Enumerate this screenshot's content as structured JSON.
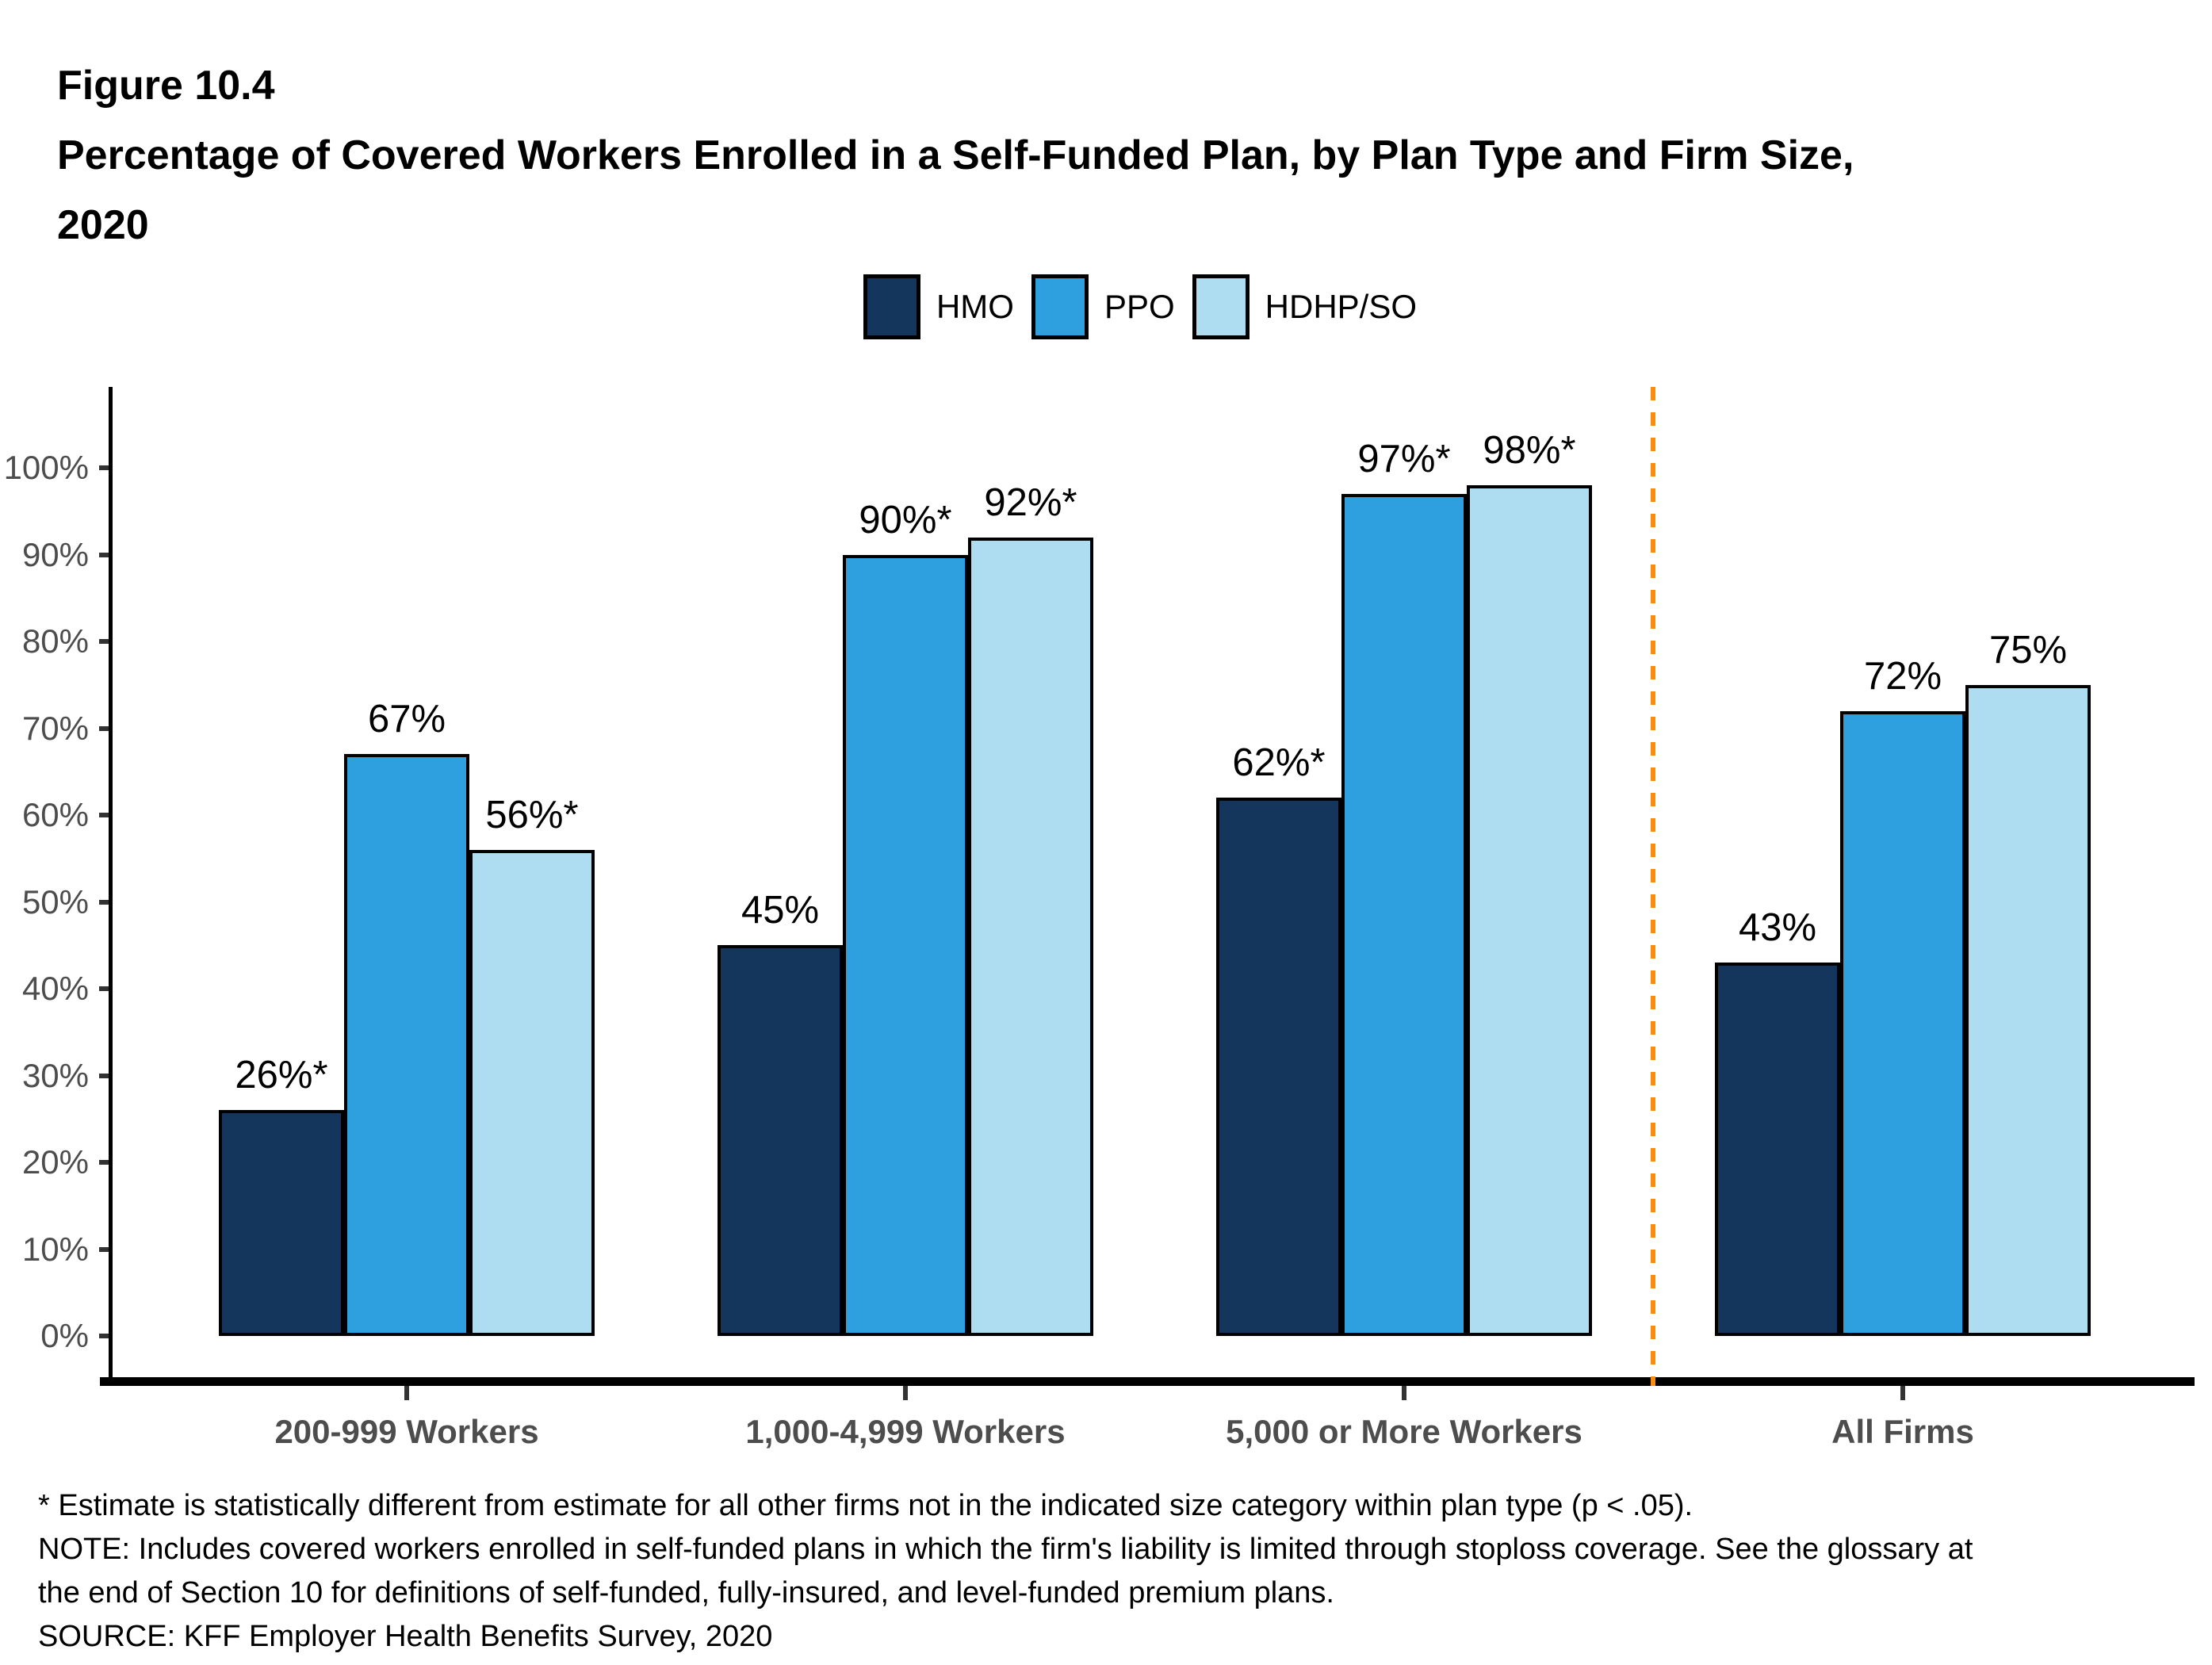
{
  "figure": {
    "title_lines": [
      "Figure 10.4",
      "Percentage of Covered Workers Enrolled in a Self-Funded Plan, by Plan Type and Firm Size,",
      "2020"
    ]
  },
  "footnotes": {
    "line1": "* Estimate is statistically different from estimate for all other firms not in the indicated size category within plan type (p < .05).",
    "line2": "NOTE: Includes covered workers enrolled in self-funded plans in which the firm's liability is limited through stoploss coverage. See the glossary at",
    "line3": "the end of Section 10 for definitions of self-funded, fully-insured, and level-funded premium plans.",
    "line4": "SOURCE: KFF Employer Health Benefits Survey, 2020"
  },
  "chart_data": {
    "type": "bar",
    "title": "Percentage of Covered Workers Enrolled in a Self-Funded Plan, by Plan Type and Firm Size, 2020",
    "categories": [
      "200-999 Workers",
      "1,000-4,999 Workers",
      "5,000 or More Workers",
      "All Firms"
    ],
    "series": [
      {
        "name": "HMO",
        "color": "#14365C",
        "values": [
          26,
          45,
          62,
          43
        ],
        "labels": [
          "26%*",
          "45%",
          "62%*",
          "43%"
        ]
      },
      {
        "name": "PPO",
        "color": "#2FA0DF",
        "values": [
          67,
          90,
          97,
          72
        ],
        "labels": [
          "67%",
          "90%*",
          "97%*",
          "72%"
        ]
      },
      {
        "name": "HDHP/SO",
        "color": "#AEDDF2",
        "values": [
          56,
          92,
          98,
          75
        ],
        "labels": [
          "56%*",
          "92%*",
          "98%*",
          "75%"
        ]
      }
    ],
    "ylim": [
      0,
      100
    ],
    "ytick_step": 10,
    "ytick_suffix": "%",
    "grid": "off",
    "legend_position": "top-center",
    "separator": {
      "between": [
        "5,000 or More Workers",
        "All Firms"
      ],
      "color": "#FA8C0F",
      "style": "dashed"
    },
    "axis_color": "#000000",
    "tick_label_color": "#4D4D4D",
    "data_label_color": "#000000"
  }
}
